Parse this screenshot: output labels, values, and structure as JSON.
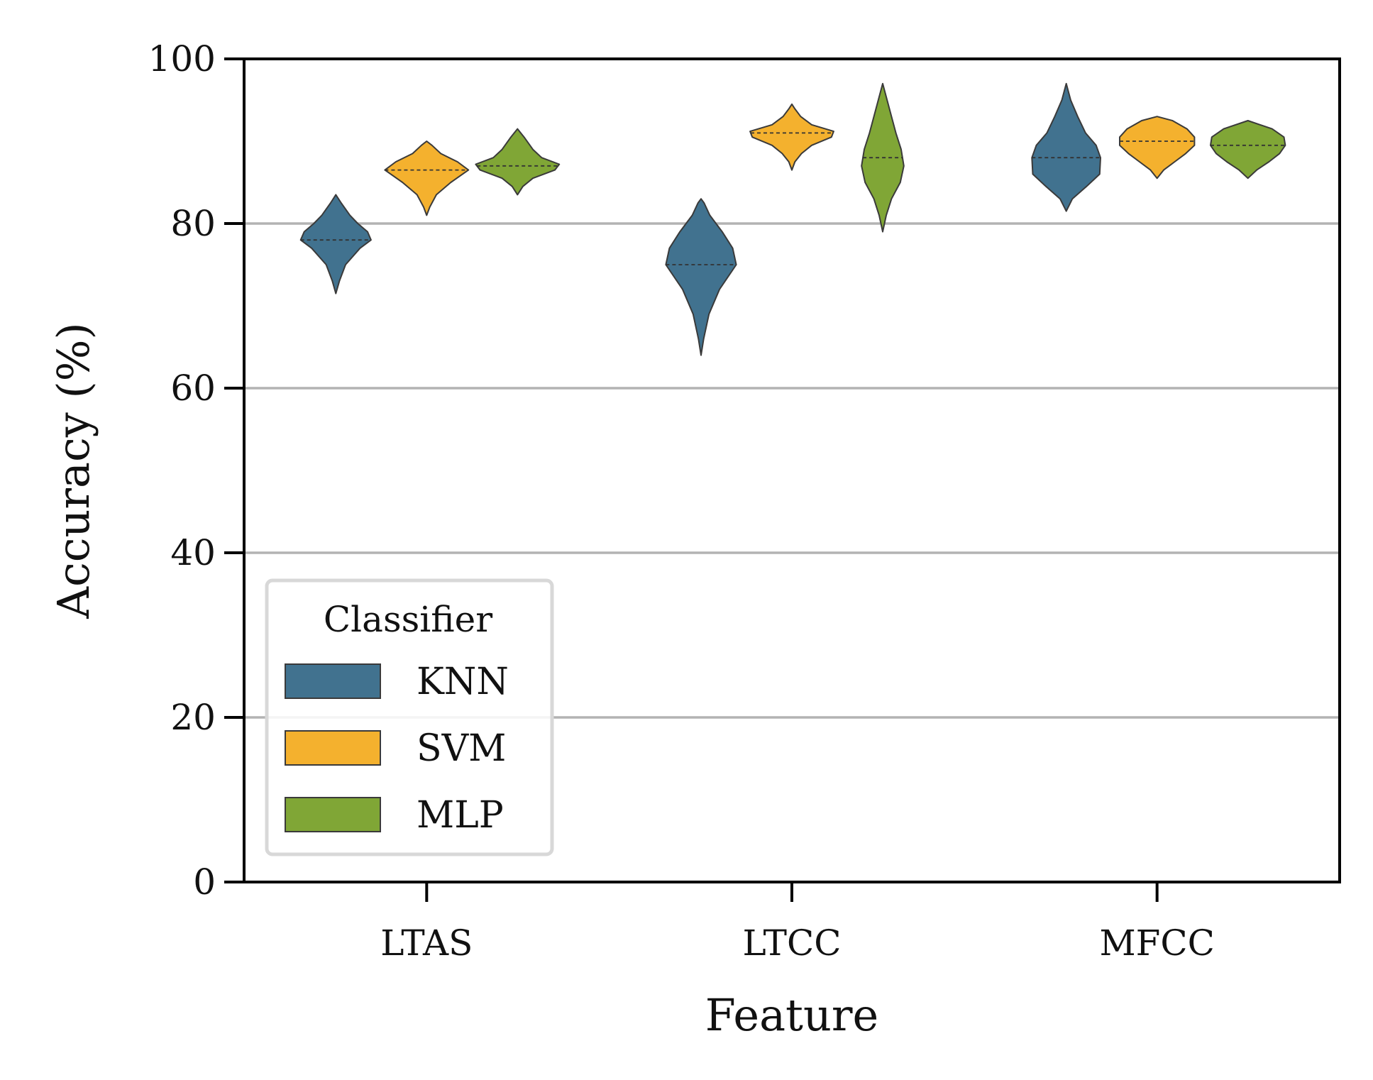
{
  "chart_data": {
    "type": "violin",
    "xlabel": "Feature",
    "ylabel": "Accuracy (%)",
    "ylim": [
      0,
      100
    ],
    "yticks": [
      0,
      20,
      40,
      60,
      80,
      100
    ],
    "categories": [
      "LTAS",
      "LTCC",
      "MFCC"
    ],
    "grid": "horizontal",
    "legend": {
      "title": "Classifier",
      "placement": "lower-left"
    },
    "series": [
      {
        "name": "KNN",
        "color": "#41728f",
        "violins": [
          {
            "min": 71.5,
            "max": 83.5,
            "median": 78,
            "profile": [
              [
                71.5,
                0
              ],
              [
                73,
                0.08
              ],
              [
                75,
                0.22
              ],
              [
                77,
                0.55
              ],
              [
                78,
                0.8
              ],
              [
                79,
                0.72
              ],
              [
                80,
                0.5
              ],
              [
                81,
                0.32
              ],
              [
                82.5,
                0.12
              ],
              [
                83.5,
                0
              ]
            ]
          },
          {
            "min": 64,
            "max": 83,
            "median": 75,
            "profile": [
              [
                64,
                0
              ],
              [
                66,
                0.06
              ],
              [
                69,
                0.18
              ],
              [
                72,
                0.42
              ],
              [
                75,
                0.8
              ],
              [
                77,
                0.72
              ],
              [
                79,
                0.48
              ],
              [
                81,
                0.2
              ],
              [
                82.5,
                0.07
              ],
              [
                83,
                0
              ]
            ]
          },
          {
            "min": 81.5,
            "max": 97,
            "median": 88,
            "profile": [
              [
                81.5,
                0
              ],
              [
                83,
                0.14
              ],
              [
                84.5,
                0.46
              ],
              [
                86,
                0.76
              ],
              [
                88,
                0.78
              ],
              [
                89.5,
                0.68
              ],
              [
                91,
                0.44
              ],
              [
                93,
                0.26
              ],
              [
                95,
                0.1
              ],
              [
                97,
                0
              ]
            ]
          }
        ]
      },
      {
        "name": "SVM",
        "color": "#f4b12e",
        "violins": [
          {
            "min": 81,
            "max": 90,
            "median": 86.5,
            "profile": [
              [
                81,
                0
              ],
              [
                82,
                0.07
              ],
              [
                83.5,
                0.22
              ],
              [
                85,
                0.55
              ],
              [
                86.5,
                0.95
              ],
              [
                87.5,
                0.7
              ],
              [
                88.5,
                0.32
              ],
              [
                89.5,
                0.12
              ],
              [
                90,
                0
              ]
            ]
          },
          {
            "min": 86.5,
            "max": 94.5,
            "median": 91,
            "profile": [
              [
                86.5,
                0
              ],
              [
                87.5,
                0.07
              ],
              [
                88.5,
                0.22
              ],
              [
                89.5,
                0.45
              ],
              [
                90.5,
                0.9
              ],
              [
                91.2,
                0.95
              ],
              [
                92,
                0.45
              ],
              [
                93,
                0.2
              ],
              [
                94,
                0.06
              ],
              [
                94.5,
                0
              ]
            ]
          },
          {
            "min": 85.5,
            "max": 93,
            "median": 90,
            "profile": [
              [
                85.5,
                0
              ],
              [
                86.5,
                0.15
              ],
              [
                87.5,
                0.4
              ],
              [
                88.5,
                0.65
              ],
              [
                89.5,
                0.85
              ],
              [
                90.5,
                0.85
              ],
              [
                91.5,
                0.68
              ],
              [
                92.5,
                0.35
              ],
              [
                93,
                0
              ]
            ]
          }
        ]
      },
      {
        "name": "MLP",
        "color": "#80a636",
        "violins": [
          {
            "min": 83.5,
            "max": 91.5,
            "median": 87,
            "profile": [
              [
                83.5,
                0
              ],
              [
                84.5,
                0.12
              ],
              [
                85.5,
                0.35
              ],
              [
                86.5,
                0.85
              ],
              [
                87.2,
                0.95
              ],
              [
                88,
                0.55
              ],
              [
                89,
                0.35
              ],
              [
                90.5,
                0.15
              ],
              [
                91.5,
                0
              ]
            ]
          },
          {
            "min": 79,
            "max": 97,
            "median": 88,
            "profile": [
              [
                79,
                0
              ],
              [
                81,
                0.08
              ],
              [
                83,
                0.2
              ],
              [
                85,
                0.4
              ],
              [
                87,
                0.48
              ],
              [
                89,
                0.42
              ],
              [
                91,
                0.3
              ],
              [
                93,
                0.2
              ],
              [
                95,
                0.1
              ],
              [
                97,
                0
              ]
            ]
          },
          {
            "min": 85.5,
            "max": 92.5,
            "median": 89.5,
            "profile": [
              [
                85.5,
                0
              ],
              [
                86.5,
                0.2
              ],
              [
                87.5,
                0.48
              ],
              [
                88.5,
                0.72
              ],
              [
                89.5,
                0.85
              ],
              [
                90.5,
                0.82
              ],
              [
                91.5,
                0.55
              ],
              [
                92.5,
                0
              ]
            ]
          }
        ]
      }
    ]
  }
}
